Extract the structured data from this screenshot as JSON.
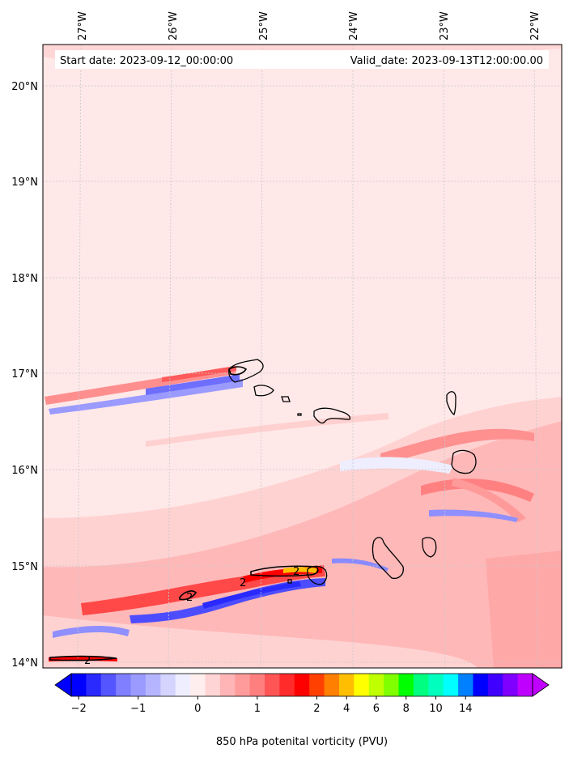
{
  "map": {
    "start_label": "Start date: 2023-09-12_00:00:00",
    "valid_label": "Valid_date: 2023-09-13T12:00:00.00",
    "longitude_labels": [
      "27°W",
      "26°W",
      "25°W",
      "24°W",
      "23°W",
      "22°W"
    ],
    "latitude_labels": [
      "20°N",
      "19°N",
      "18°N",
      "17°N",
      "16°N",
      "15°N",
      "14°N"
    ],
    "contour_labels": [
      "2",
      "2",
      "2",
      "2"
    ]
  },
  "colorbar": {
    "title": "850 hPa potenital vorticity (PVU)",
    "tick_labels": [
      "−2",
      "−1",
      "0",
      "1",
      "2",
      "4",
      "6",
      "8",
      "10",
      "14"
    ],
    "colors": [
      "#0000ff",
      "#2a2aff",
      "#5555ff",
      "#7f7fff",
      "#9b9bff",
      "#b5b5ff",
      "#d4d4ff",
      "#eeeeff",
      "#ffeeee",
      "#ffd4d4",
      "#ffb5b5",
      "#ff9b9b",
      "#ff7f7f",
      "#ff5555",
      "#ff2a2a",
      "#ff0000",
      "#ff4000",
      "#ff8000",
      "#ffbf00",
      "#ffff00",
      "#bfff00",
      "#80ff00",
      "#00ff00",
      "#00ff80",
      "#00ffbf",
      "#00ffff",
      "#0080ff",
      "#0000ff",
      "#4000ff",
      "#8000ff",
      "#bf00ff"
    ]
  },
  "colors": {
    "background_field": "#ffe8e8",
    "coast": "#000000",
    "grid": "#c8c8c8"
  }
}
